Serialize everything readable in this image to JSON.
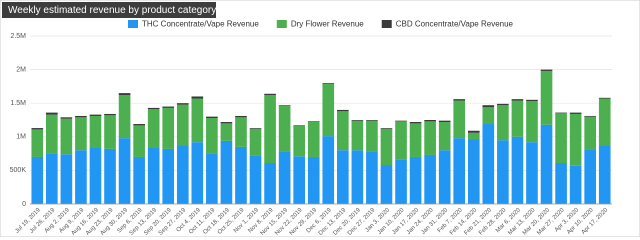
{
  "chart_data": {
    "type": "stacked-bar",
    "title": "Weekly estimated revenue by product category",
    "categories": [
      "Jul 19, 2019",
      "Jul 26, 2019",
      "Aug 2, 2019",
      "Aug 9, 2019",
      "Aug 16, 2019",
      "Aug 23, 2019",
      "Aug 30, 2019",
      "Sep 6, 2019",
      "Sep 13, 2019",
      "Sep 20, 2019",
      "Sep 27, 2019",
      "Oct 4, 2019",
      "Oct 11, 2019",
      "Oct 18, 2019",
      "Oct 25, 2019",
      "Nov 1, 2019",
      "Nov 8, 2019",
      "Nov 15, 2019",
      "Nov 22, 2019",
      "Nov 29, 2019",
      "Dec 6, 2019",
      "Dec 13, 2019",
      "Dec 20, 2019",
      "Dec 27, 2019",
      "Jan 3, 2020",
      "Jan 10, 2020",
      "Jan 17, 2020",
      "Jan 24, 2020",
      "Jan 31, 2020",
      "Feb 7, 2020",
      "Feb 14, 2020",
      "Feb 21, 2020",
      "Feb 28, 2020",
      "Mar 6, 2020",
      "Mar 13, 2020",
      "Mar 20, 2020",
      "Mar 27, 2020",
      "Apr 3, 2020",
      "Apr 10, 2020",
      "Apr 17, 2020"
    ],
    "series": [
      {
        "name": "THC Concentrate/Vape Revenue",
        "color": "#2196f3",
        "values": [
          700000,
          750000,
          740000,
          800000,
          840000,
          820000,
          980000,
          700000,
          840000,
          820000,
          870000,
          920000,
          750000,
          940000,
          850000,
          720000,
          610000,
          780000,
          710000,
          700000,
          1010000,
          800000,
          800000,
          780000,
          580000,
          660000,
          700000,
          730000,
          800000,
          980000,
          960000,
          1190000,
          950000,
          1000000,
          920000,
          1180000,
          610000,
          570000,
          810000,
          870000
        ]
      },
      {
        "name": "Dry Flower Revenue",
        "color": "#4caf50",
        "values": [
          410000,
          580000,
          530000,
          490000,
          470000,
          500000,
          640000,
          470000,
          570000,
          610000,
          610000,
          650000,
          530000,
          260000,
          440000,
          400000,
          1010000,
          680000,
          450000,
          520000,
          780000,
          580000,
          440000,
          460000,
          540000,
          570000,
          500000,
          500000,
          420000,
          560000,
          100000,
          250000,
          520000,
          540000,
          610000,
          800000,
          740000,
          770000,
          490000,
          700000
        ]
      },
      {
        "name": "CBD Concentrate/Vape Revenue",
        "color": "#3a3a3a",
        "values": [
          20000,
          30000,
          20000,
          20000,
          20000,
          20000,
          30000,
          20000,
          20000,
          20000,
          20000,
          30000,
          20000,
          20000,
          20000,
          10000,
          20000,
          10000,
          10000,
          10000,
          10000,
          20000,
          10000,
          10000,
          10000,
          10000,
          20000,
          20000,
          20000,
          20000,
          30000,
          30000,
          20000,
          20000,
          20000,
          20000,
          10000,
          20000,
          10000,
          10000
        ]
      }
    ],
    "ylim": [
      0,
      2500000
    ],
    "yticks": [
      0,
      {
        "value": 500000,
        "label": "500K"
      },
      {
        "value": 1000000,
        "label": "1M"
      },
      {
        "value": 1500000,
        "label": "1.5M"
      },
      {
        "value": 2000000,
        "label": "2M"
      },
      {
        "value": 2500000,
        "label": "2.5M"
      }
    ],
    "grid": true
  }
}
